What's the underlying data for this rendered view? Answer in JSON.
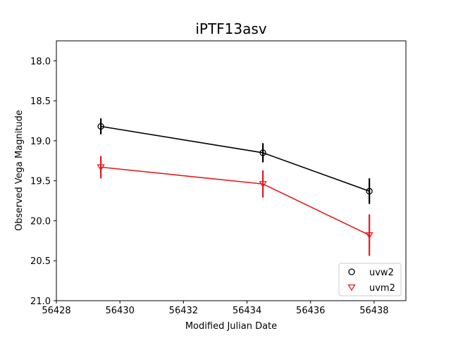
{
  "chart_data": {
    "type": "line",
    "title": "iPTF13asv",
    "xlabel": "Modified Julian Date",
    "ylabel": "Observed Vega Magnitude",
    "xlim": [
      56428,
      56439
    ],
    "ylim": [
      21.0,
      17.75
    ],
    "y_inverted": true,
    "xticks": [
      56428,
      56430,
      56432,
      56434,
      56436,
      56438
    ],
    "yticks": [
      18.0,
      18.5,
      19.0,
      19.5,
      20.0,
      20.5,
      21.0
    ],
    "xtick_labels": [
      "56428",
      "56430",
      "56432",
      "56434",
      "56436",
      "56438"
    ],
    "ytick_labels": [
      "18.0",
      "18.5",
      "19.0",
      "19.5",
      "20.0",
      "20.5",
      "21.0"
    ],
    "grid": false,
    "legend_position": "lower-right",
    "series": [
      {
        "name": "uvw2",
        "color": "#000000",
        "marker": "circle",
        "points": [
          {
            "x": 56429.4,
            "y": 18.82,
            "err": 0.1
          },
          {
            "x": 56434.5,
            "y": 19.15,
            "err": 0.12
          },
          {
            "x": 56437.85,
            "y": 19.63,
            "err": 0.16
          }
        ]
      },
      {
        "name": "uvm2",
        "color": "#e41a1c",
        "marker": "triangle-down",
        "points": [
          {
            "x": 56429.4,
            "y": 19.33,
            "err": 0.14
          },
          {
            "x": 56434.5,
            "y": 19.54,
            "err": 0.17
          },
          {
            "x": 56437.85,
            "y": 20.18,
            "err": 0.26
          }
        ]
      }
    ]
  }
}
